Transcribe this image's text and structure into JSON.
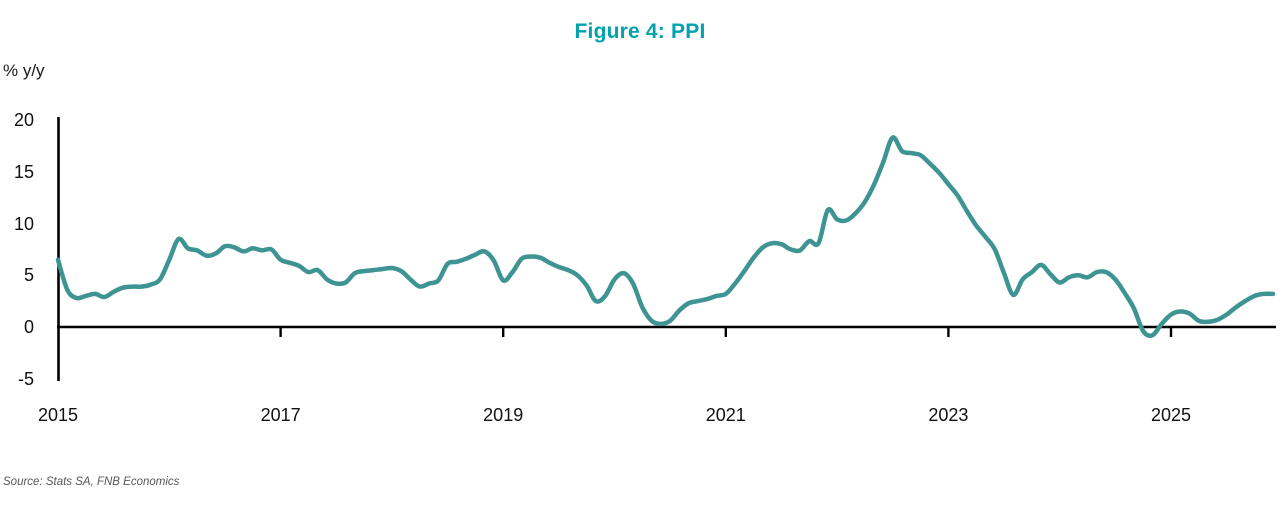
{
  "title": "Figure 4: PPI",
  "y_axis_unit_label": "% y/y",
  "source": "Source: Stats SA, FNB Economics",
  "colors": {
    "title": "#00A3AD",
    "line": "#3E9492",
    "axis": "#000000"
  },
  "chart_data": {
    "type": "line",
    "title": "Figure 4: PPI",
    "xlabel": "",
    "ylabel": "% y/y",
    "ylim": [
      -5,
      20
    ],
    "y_ticks": [
      "20",
      "15",
      "10",
      "5",
      "0",
      "-5"
    ],
    "x_tick_labels": [
      "2015",
      "2017",
      "2019",
      "2021",
      "2023",
      "2025"
    ],
    "x_start": "2015-01",
    "x_end": "2025-12",
    "frequency": "monthly",
    "grid": false,
    "legend_position": "none",
    "series": [
      {
        "name": "PPI % y/y",
        "values": [
          6.5,
          3.6,
          2.8,
          3.0,
          3.2,
          2.9,
          3.4,
          3.8,
          3.9,
          3.9,
          4.1,
          4.6,
          6.5,
          8.5,
          7.6,
          7.4,
          6.9,
          7.1,
          7.8,
          7.7,
          7.3,
          7.6,
          7.4,
          7.5,
          6.5,
          6.2,
          5.9,
          5.3,
          5.5,
          4.6,
          4.2,
          4.3,
          5.2,
          5.4,
          5.5,
          5.6,
          5.7,
          5.4,
          4.6,
          3.9,
          4.2,
          4.5,
          6.1,
          6.3,
          6.6,
          7.0,
          7.3,
          6.4,
          4.5,
          5.3,
          6.6,
          6.8,
          6.7,
          6.2,
          5.8,
          5.5,
          5.0,
          4.0,
          2.5,
          3.0,
          4.6,
          5.2,
          4.2,
          1.9,
          0.6,
          0.3,
          0.6,
          1.6,
          2.3,
          2.5,
          2.7,
          3.0,
          3.2,
          4.2,
          5.4,
          6.7,
          7.7,
          8.1,
          8.0,
          7.5,
          7.4,
          8.3,
          8.1,
          11.3,
          10.4,
          10.3,
          11.0,
          12.1,
          13.8,
          16.0,
          18.3,
          17.0,
          16.8,
          16.6,
          15.8,
          14.9,
          13.8,
          12.7,
          11.2,
          9.8,
          8.7,
          7.5,
          5.2,
          3.1,
          4.6,
          5.3,
          6.0,
          5.1,
          4.3,
          4.8,
          5.0,
          4.8,
          5.3,
          5.3,
          4.6,
          3.3,
          1.8,
          -0.4,
          -0.8,
          0.3,
          1.2,
          1.5,
          1.3,
          0.6,
          0.5,
          0.7,
          1.2,
          1.9,
          2.5,
          3.0,
          3.2,
          3.2
        ]
      }
    ]
  }
}
